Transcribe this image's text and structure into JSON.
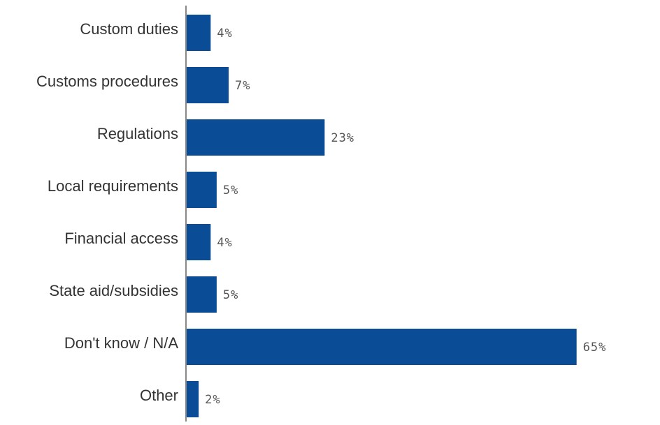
{
  "chart_data": {
    "type": "bar",
    "orientation": "horizontal",
    "categories": [
      "Custom duties",
      "Customs procedures",
      "Regulations",
      "Local requirements",
      "Financial access",
      "State aid/subsidies",
      "Don't know / N/A",
      "Other"
    ],
    "values": [
      4,
      7,
      23,
      5,
      4,
      5,
      65,
      2
    ],
    "value_labels": [
      "4%",
      "7%",
      "23%",
      "5%",
      "4%",
      "5%",
      "65%",
      "2%"
    ],
    "unit": "%",
    "xlim": [
      0,
      70
    ],
    "grid": false,
    "legend": "none",
    "colors": {
      "bar": "#0a4c96",
      "axis": "#888888"
    }
  }
}
